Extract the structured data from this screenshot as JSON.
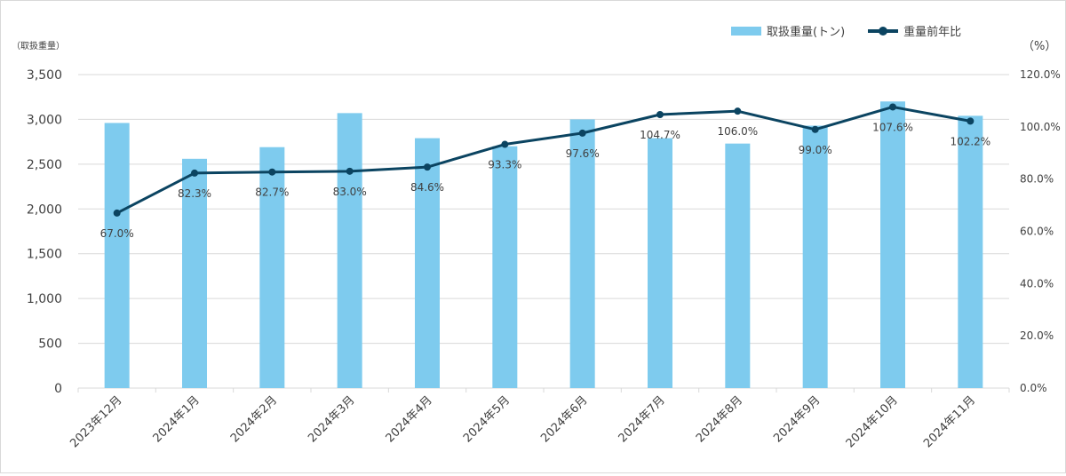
{
  "chart_data": {
    "type": "bar+line",
    "title": "",
    "categories": [
      "2023年12月",
      "2024年1月",
      "2024年2月",
      "2024年3月",
      "2024年4月",
      "2024年5月",
      "2024年6月",
      "2024年7月",
      "2024年8月",
      "2024年9月",
      "2024年10月",
      "2024年11月"
    ],
    "series": [
      {
        "name": "取扱重量(トン)",
        "type": "bar",
        "axis": "left",
        "values": [
          2960,
          2560,
          2690,
          3070,
          2790,
          2700,
          3000,
          2790,
          2730,
          2930,
          3200,
          3040
        ]
      },
      {
        "name": "重量前年比",
        "type": "line",
        "axis": "right",
        "values": [
          67.0,
          82.3,
          82.7,
          83.0,
          84.6,
          93.3,
          97.6,
          104.7,
          106.0,
          99.0,
          107.6,
          102.2
        ],
        "labels": [
          "67.0%",
          "82.3%",
          "82.7%",
          "83.0%",
          "84.6%",
          "93.3%",
          "97.6%",
          "104.7%",
          "106.0%",
          "99.0%",
          "107.6%",
          "102.2%"
        ]
      }
    ],
    "y_left": {
      "label": "（取扱重量）",
      "ylim": [
        0,
        3500
      ],
      "ticks": [
        "0",
        "500",
        "1,000",
        "1,500",
        "2,000",
        "2,500",
        "3,000",
        "3,500"
      ]
    },
    "y_right": {
      "label": "（%）",
      "ylim": [
        0,
        120
      ],
      "ticks": [
        "0.0%",
        "20.0%",
        "40.0%",
        "60.0%",
        "80.0%",
        "100.0%",
        "120.0%"
      ]
    },
    "grid": true,
    "legend_position": "top-right",
    "colors": {
      "bar": "#7ecbee",
      "line": "#0b4461",
      "grid": "#d9d9d9",
      "text": "#404040"
    }
  }
}
